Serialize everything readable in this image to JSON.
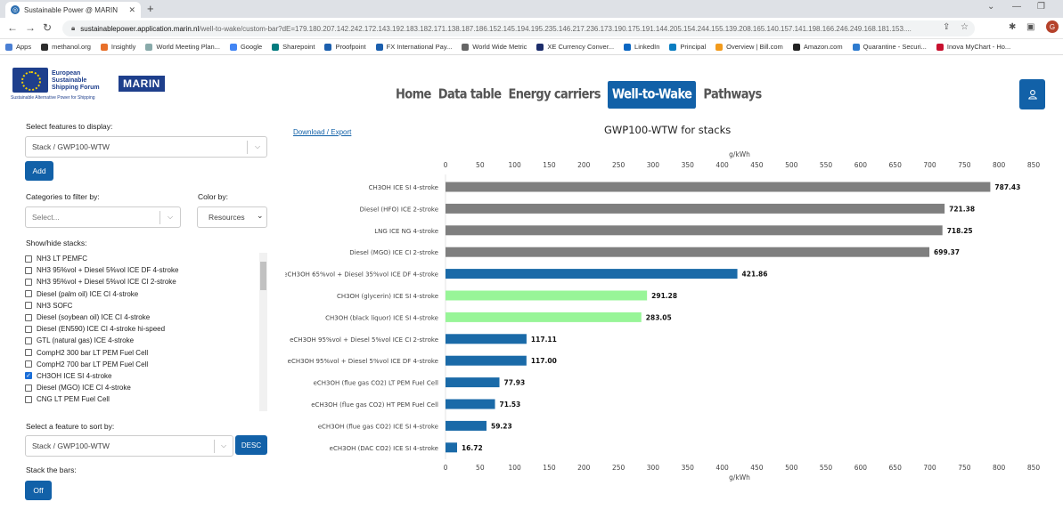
{
  "browser": {
    "tab_title": "Sustainable Power @ MARIN",
    "url_host": "sustainablepower.application.marin.nl",
    "url_path": "/well-to-wake/custom-bar?dE=179.180.207.142.242.172.143.192.183.182.171.138.187.186.152.145.194.195.235.146.217.236.173.190.175.191.144.205.154.244.155.139.208.165.140.157.141.198.166.246.249.168.181.153....",
    "bookmarks": [
      "Apps",
      "methanol.org",
      "Insightly",
      "World Meeting Plan...",
      "Google",
      "Sharepoint",
      "Proofpoint",
      "FX International Pay...",
      "World Wide Metric",
      "XE Currency Conver...",
      "LinkedIn",
      "Principal",
      "Overview | Bill.com",
      "Amazon.com",
      "Quarantine - Securi...",
      "Inova MyChart - Ho..."
    ],
    "profile_initial": "G"
  },
  "logo": {
    "org_line1": "European",
    "org_line2": "Sustainable",
    "org_line3": "Shipping Forum",
    "brand": "MARIN",
    "tagline": "Sustainable Alternative Power for Shipping"
  },
  "nav": {
    "items": [
      "Home",
      "Data table",
      "Energy carriers",
      "Well-to-Wake",
      "Pathways"
    ],
    "active": "Well-to-Wake"
  },
  "sidebar": {
    "features_label": "Select features to display:",
    "features_value": "Stack / GWP100-WTW",
    "add_label": "Add",
    "categories_label": "Categories to filter by:",
    "categories_placeholder": "Select...",
    "color_label": "Color by:",
    "color_value": "Resources",
    "showhide_label": "Show/hide stacks:",
    "stacks": [
      {
        "label": "NH3 LT PEMFC",
        "checked": false
      },
      {
        "label": "NH3 95%vol + Diesel 5%vol ICE DF 4-stroke",
        "checked": false
      },
      {
        "label": "NH3 95%vol + Diesel 5%vol ICE CI 2-stroke",
        "checked": false
      },
      {
        "label": "Diesel (palm oil) ICE CI 4-stroke",
        "checked": false
      },
      {
        "label": "NH3 SOFC",
        "checked": false
      },
      {
        "label": "Diesel (soybean oil) ICE CI 4-stroke",
        "checked": false
      },
      {
        "label": "Diesel (EN590) ICE CI 4-stroke hi-speed",
        "checked": false
      },
      {
        "label": "GTL (natural gas) ICE 4-stroke",
        "checked": false
      },
      {
        "label": "CompH2 300 bar LT PEM Fuel Cell",
        "checked": false
      },
      {
        "label": "CompH2 700 bar LT PEM Fuel Cell",
        "checked": false
      },
      {
        "label": "CH3OH ICE SI 4-stroke",
        "checked": true
      },
      {
        "label": "Diesel (MGO) ICE CI 4-stroke",
        "checked": false
      },
      {
        "label": "CNG LT PEM Fuel Cell",
        "checked": false
      }
    ],
    "sort_label": "Select a feature to sort by:",
    "sort_value": "Stack / GWP100-WTW",
    "sort_order": "DESC",
    "stackbars_label": "Stack the bars:",
    "stackbars_value": "Off"
  },
  "download_label": "Download / Export",
  "colors": {
    "accent": "#1261a8",
    "gray": "#7f7f7f",
    "blue": "#1a6aa8",
    "green": "#98f598"
  },
  "chart_data": {
    "type": "bar",
    "orientation": "horizontal",
    "title": "GWP100-WTW for stacks",
    "xlabel": "g/kWh",
    "xlim": [
      0,
      850
    ],
    "xticks": [
      0,
      50,
      100,
      150,
      200,
      250,
      300,
      350,
      400,
      450,
      500,
      550,
      600,
      650,
      700,
      750,
      800,
      850
    ],
    "categories": [
      "CH3OH ICE SI 4-stroke",
      "Diesel (HFO) ICE 2-stroke",
      "LNG ICE NG 4-stroke",
      "Diesel (MGO) ICE CI 2-stroke",
      "eCH3OH 65%vol + Diesel 35%vol ICE DF 4-stroke",
      "CH3OH (glycerin) ICE SI 4-stroke",
      "CH3OH (black liquor) ICE SI 4-stroke",
      "eCH3OH 95%vol + Diesel 5%vol ICE CI 2-stroke",
      "eCH3OH 95%vol + Diesel 5%vol ICE DF 4-stroke",
      "eCH3OH (flue gas CO2) LT PEM Fuel Cell",
      "eCH3OH (flue gas CO2) HT PEM Fuel Cell",
      "eCH3OH (flue gas CO2) ICE SI 4-stroke",
      "eCH3OH (DAC CO2) ICE SI 4-stroke"
    ],
    "values": [
      787.43,
      721.38,
      718.25,
      699.37,
      421.86,
      291.28,
      283.05,
      117.11,
      117.0,
      77.93,
      71.53,
      59.23,
      16.72
    ],
    "value_labels": [
      "787.43",
      "721.38",
      "718.25",
      "699.37",
      "421.86",
      "291.28",
      "283.05",
      "117.11",
      "117.00",
      "77.93",
      "71.53",
      "59.23",
      "16.72"
    ],
    "bar_colors": [
      "gray",
      "gray",
      "gray",
      "gray",
      "blue",
      "green",
      "green",
      "blue",
      "blue",
      "blue",
      "blue",
      "blue",
      "blue"
    ]
  }
}
